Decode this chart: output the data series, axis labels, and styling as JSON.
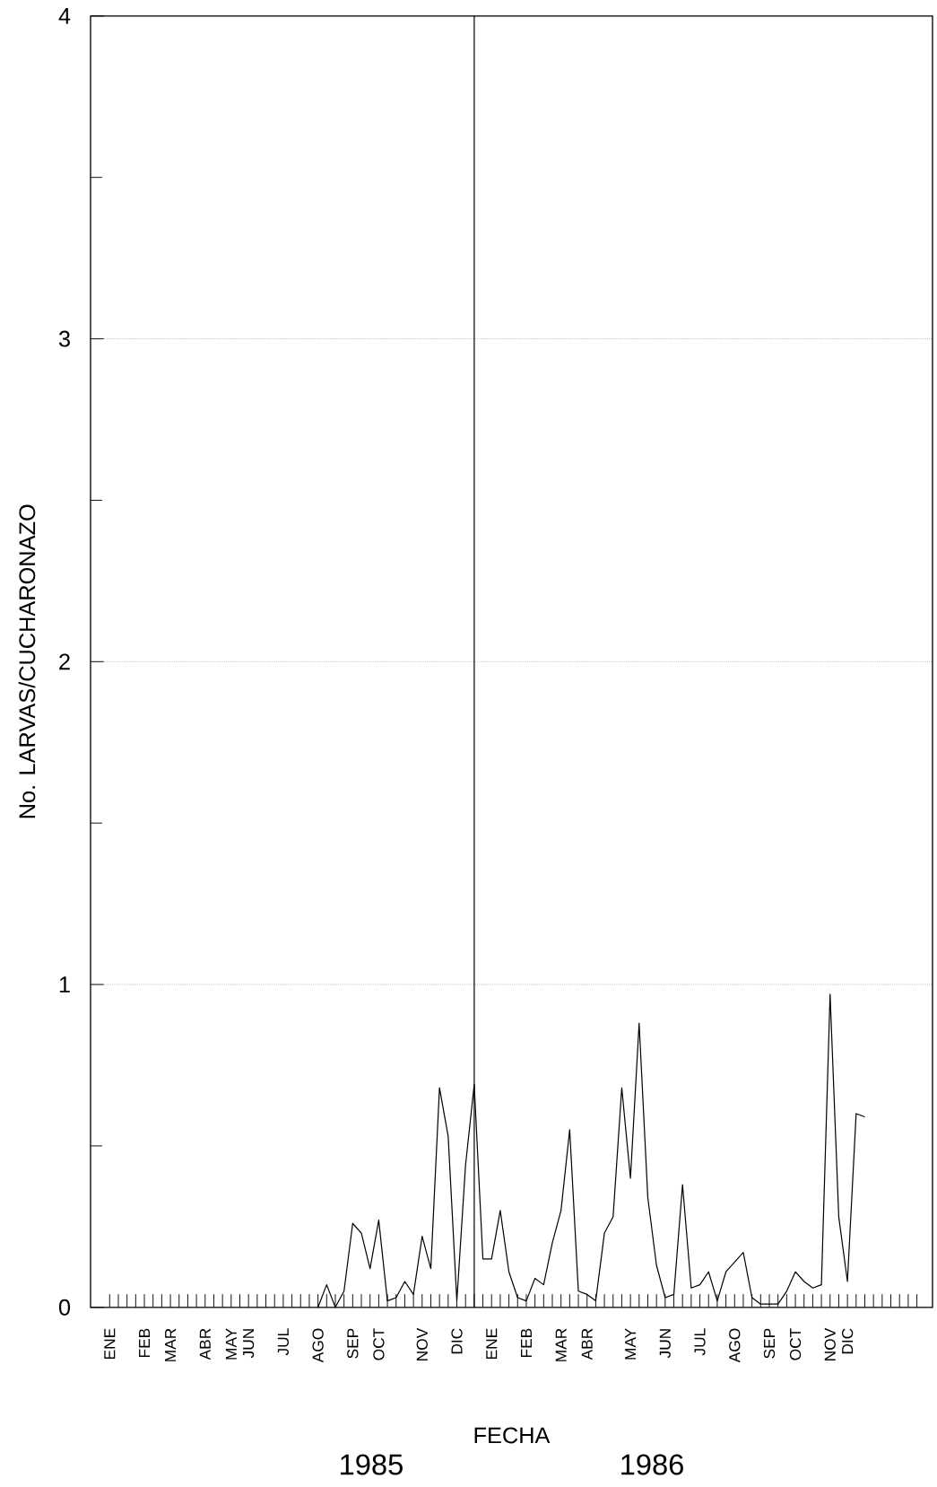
{
  "chart_data": {
    "type": "line",
    "xlabel": "FECHA",
    "ylabel": "No. LARVAS/CUCHARONAZO",
    "annotations": [
      "1985",
      "1986"
    ],
    "categories": [
      "ENE",
      null,
      null,
      null,
      "FEB",
      null,
      null,
      "MAR",
      null,
      null,
      null,
      "ABR",
      null,
      null,
      "MAY",
      null,
      "JUN",
      null,
      null,
      null,
      "JUL",
      null,
      null,
      null,
      "AGO",
      null,
      null,
      null,
      "SEP",
      null,
      null,
      "OCT",
      null,
      null,
      null,
      null,
      "NOV",
      null,
      null,
      null,
      "DIC",
      null,
      null,
      null,
      "ENE",
      null,
      null,
      null,
      "FEB",
      null,
      null,
      null,
      "MAR",
      null,
      null,
      "ABR",
      null,
      null,
      null,
      null,
      "MAY",
      null,
      null,
      null,
      "JUN",
      null,
      null,
      null,
      "JUL",
      null,
      null,
      null,
      "AGO",
      null,
      null,
      null,
      "SEP",
      null,
      null,
      "OCT",
      null,
      null,
      null,
      "NOV",
      null,
      "DIC",
      null,
      null,
      null,
      null,
      null,
      null,
      null,
      null
    ],
    "series": [
      {
        "color": "#000000",
        "values": [
          null,
          null,
          null,
          null,
          null,
          null,
          null,
          null,
          null,
          null,
          null,
          null,
          null,
          null,
          null,
          null,
          null,
          null,
          null,
          null,
          null,
          null,
          null,
          null,
          0,
          0.07,
          0,
          0.05,
          0.26,
          0.23,
          0.12,
          0.27,
          0.02,
          0.03,
          0.08,
          0.04,
          0.22,
          0.12,
          0.68,
          0.53,
          0.02,
          0.44,
          0.69,
          0.15,
          0.15,
          0.3,
          0.11,
          0.03,
          0.02,
          0.09,
          0.07,
          0.2,
          0.3,
          0.55,
          0.05,
          0.04,
          0.02,
          0.23,
          0.28,
          0.68,
          0.4,
          0.88,
          0.34,
          0.13,
          0.03,
          0.04,
          0.38,
          0.06,
          0.07,
          0.11,
          0.02,
          0.11,
          0.14,
          0.17,
          0.03,
          0.01,
          0.01,
          0.01,
          0.05,
          0.11,
          0.08,
          0.06,
          0.07,
          0.97,
          0.28,
          0.08,
          0.6,
          0.59,
          null,
          null,
          null,
          null,
          null,
          null
        ]
      }
    ],
    "ylim": [
      0,
      4
    ],
    "yticks": [
      {
        "value": 0,
        "label": "0"
      },
      {
        "value": 0.5,
        "label": null
      },
      {
        "value": 1,
        "label": "1"
      },
      {
        "value": 1.5,
        "label": null
      },
      {
        "value": 2,
        "label": "2"
      },
      {
        "value": 2.5,
        "label": null
      },
      {
        "value": 3,
        "label": "3"
      },
      {
        "value": 3.5,
        "label": null
      },
      {
        "value": 4,
        "label": "4"
      }
    ],
    "grid": "y"
  }
}
